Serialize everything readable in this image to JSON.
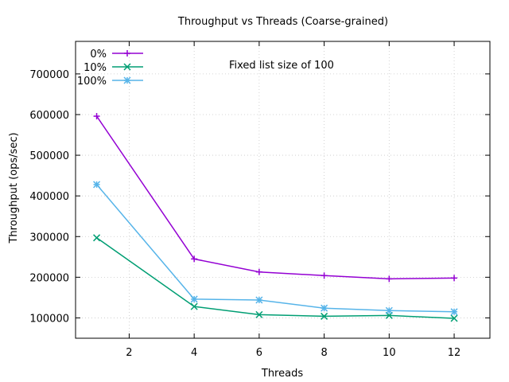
{
  "chart_data": {
    "type": "line",
    "title": "Throughput vs Threads (Coarse-grained)",
    "xlabel": "Threads",
    "ylabel": "Throughput (ops/sec)",
    "annotation": "Fixed list size of 100",
    "xlim": [
      0.35,
      13.1
    ],
    "ylim": [
      50000,
      780000
    ],
    "xticks": [
      2,
      4,
      6,
      8,
      10,
      12
    ],
    "yticks": [
      100000,
      200000,
      300000,
      400000,
      500000,
      600000,
      700000
    ],
    "grid": true,
    "legend_position": "top-left",
    "x": [
      1,
      4,
      6,
      8,
      10,
      12
    ],
    "series": [
      {
        "name": "0%",
        "color": "#9400d3",
        "marker": "plus",
        "values": [
          596000,
          245000,
          213000,
          204000,
          196000,
          198000
        ]
      },
      {
        "name": "10%",
        "color": "#009e73",
        "marker": "cross",
        "values": [
          297000,
          128000,
          108000,
          104000,
          106000,
          99000
        ]
      },
      {
        "name": "100%",
        "color": "#56b4e9",
        "marker": "star",
        "values": [
          428000,
          146000,
          144000,
          124000,
          118000,
          115000
        ]
      }
    ]
  }
}
